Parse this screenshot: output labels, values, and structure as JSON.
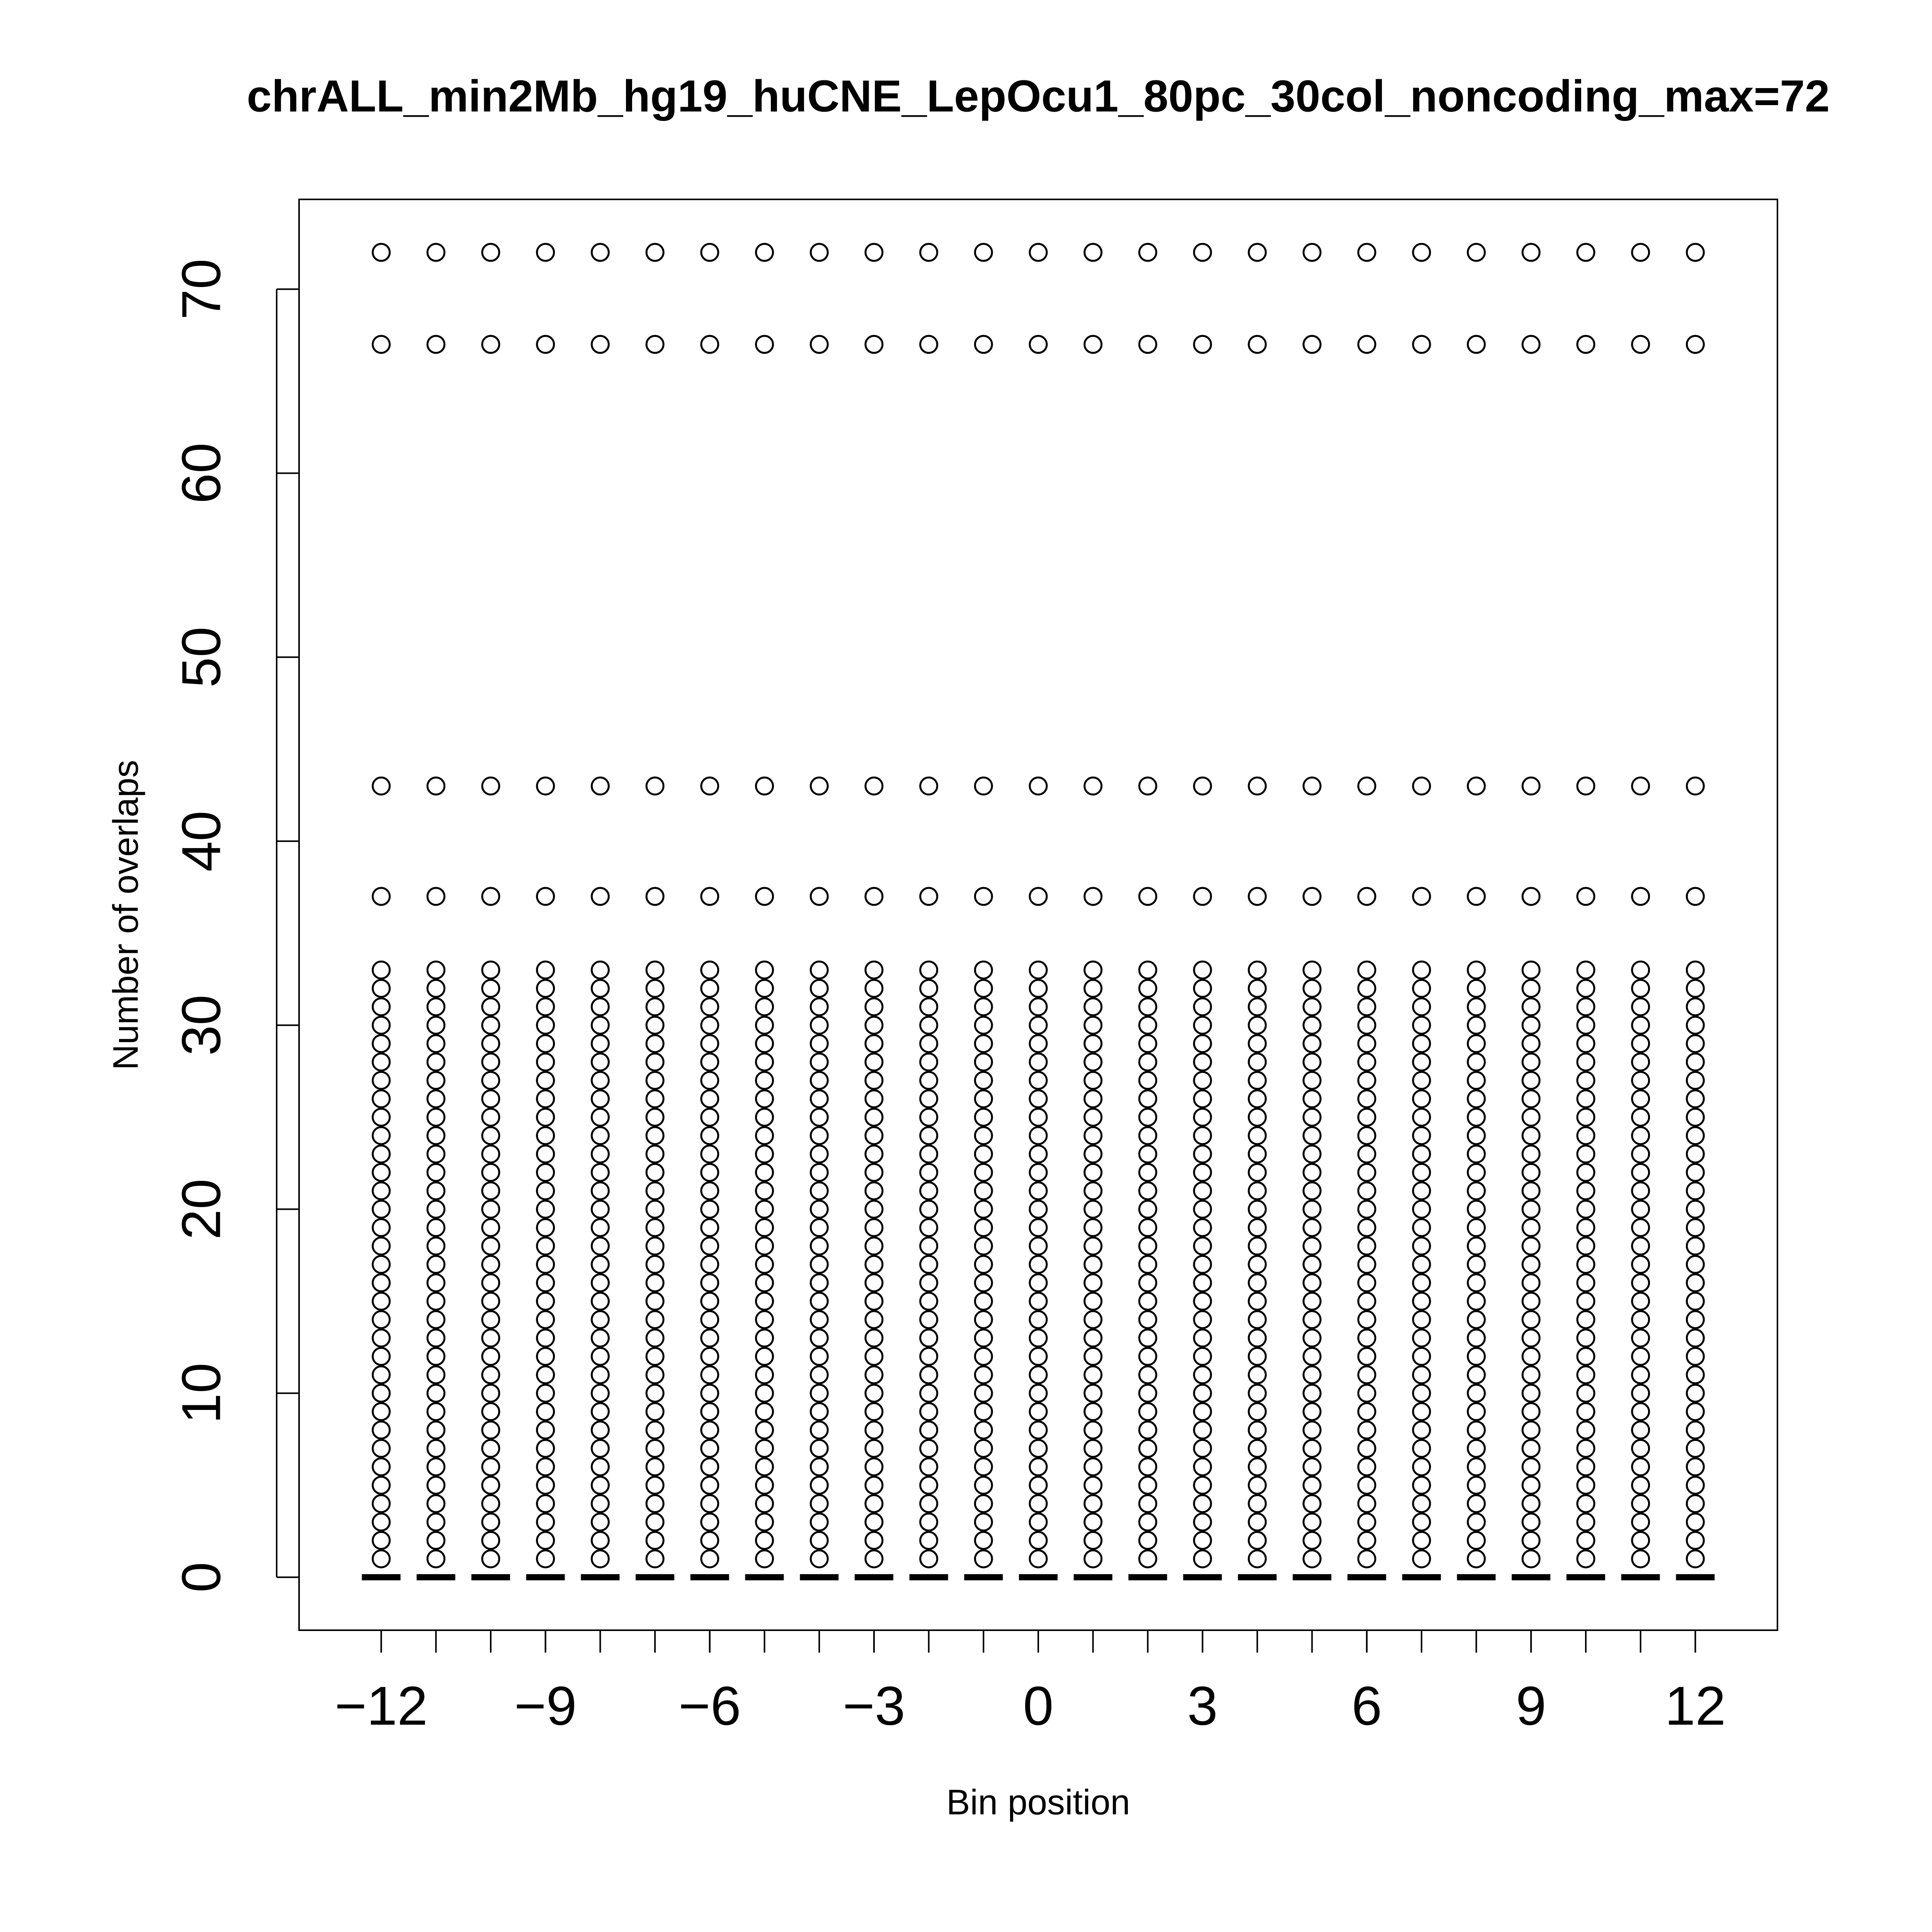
{
  "chart_data": {
    "type": "strip",
    "title": "chrALL_min2Mb_hg19_huCNE_LepOcu1_80pc_30col_noncoding_max=72",
    "x_label": "Bin position",
    "y_label": "Number of overlaps",
    "xlim": [
      -13.5,
      13.5
    ],
    "ylim": [
      -2.88,
      74.88
    ],
    "xticks": [
      {
        "value": -12,
        "label": "−12"
      },
      {
        "value": -9,
        "label": "−9"
      },
      {
        "value": -6,
        "label": "−6"
      },
      {
        "value": -3,
        "label": "−3"
      },
      0,
      3,
      6,
      9,
      12
    ],
    "yticks": [
      0,
      10,
      20,
      30,
      40,
      50,
      60,
      70
    ],
    "color": "#000000",
    "series": [
      {
        "x": -12,
        "values": [
          0,
          1,
          2,
          3,
          4,
          5,
          6,
          7,
          8,
          9,
          10,
          11,
          12,
          13,
          14,
          15,
          16,
          17,
          18,
          19,
          20,
          21,
          22,
          23,
          24,
          25,
          26,
          27,
          28,
          29,
          30,
          31,
          32,
          33,
          37,
          43,
          67,
          72
        ]
      },
      {
        "x": -11,
        "values": [
          0,
          1,
          2,
          3,
          4,
          5,
          6,
          7,
          8,
          9,
          10,
          11,
          12,
          13,
          14,
          15,
          16,
          17,
          18,
          19,
          20,
          21,
          22,
          23,
          24,
          25,
          26,
          27,
          28,
          29,
          30,
          31,
          32,
          33,
          37,
          43,
          67,
          72
        ]
      },
      {
        "x": -10,
        "values": [
          0,
          1,
          2,
          3,
          4,
          5,
          6,
          7,
          8,
          9,
          10,
          11,
          12,
          13,
          14,
          15,
          16,
          17,
          18,
          19,
          20,
          21,
          22,
          23,
          24,
          25,
          26,
          27,
          28,
          29,
          30,
          31,
          32,
          33,
          37,
          43,
          67,
          72
        ]
      },
      {
        "x": -9,
        "values": [
          0,
          1,
          2,
          3,
          4,
          5,
          6,
          7,
          8,
          9,
          10,
          11,
          12,
          13,
          14,
          15,
          16,
          17,
          18,
          19,
          20,
          21,
          22,
          23,
          24,
          25,
          26,
          27,
          28,
          29,
          30,
          31,
          32,
          33,
          37,
          43,
          67,
          72
        ]
      },
      {
        "x": -8,
        "values": [
          0,
          1,
          2,
          3,
          4,
          5,
          6,
          7,
          8,
          9,
          10,
          11,
          12,
          13,
          14,
          15,
          16,
          17,
          18,
          19,
          20,
          21,
          22,
          23,
          24,
          25,
          26,
          27,
          28,
          29,
          30,
          31,
          32,
          33,
          37,
          43,
          67,
          72
        ]
      },
      {
        "x": -7,
        "values": [
          0,
          1,
          2,
          3,
          4,
          5,
          6,
          7,
          8,
          9,
          10,
          11,
          12,
          13,
          14,
          15,
          16,
          17,
          18,
          19,
          20,
          21,
          22,
          23,
          24,
          25,
          26,
          27,
          28,
          29,
          30,
          31,
          32,
          33,
          37,
          43,
          67,
          72
        ]
      },
      {
        "x": -6,
        "values": [
          0,
          1,
          2,
          3,
          4,
          5,
          6,
          7,
          8,
          9,
          10,
          11,
          12,
          13,
          14,
          15,
          16,
          17,
          18,
          19,
          20,
          21,
          22,
          23,
          24,
          25,
          26,
          27,
          28,
          29,
          30,
          31,
          32,
          33,
          37,
          43,
          67,
          72
        ]
      },
      {
        "x": -5,
        "values": [
          0,
          1,
          2,
          3,
          4,
          5,
          6,
          7,
          8,
          9,
          10,
          11,
          12,
          13,
          14,
          15,
          16,
          17,
          18,
          19,
          20,
          21,
          22,
          23,
          24,
          25,
          26,
          27,
          28,
          29,
          30,
          31,
          32,
          33,
          37,
          43,
          67,
          72
        ]
      },
      {
        "x": -4,
        "values": [
          0,
          1,
          2,
          3,
          4,
          5,
          6,
          7,
          8,
          9,
          10,
          11,
          12,
          13,
          14,
          15,
          16,
          17,
          18,
          19,
          20,
          21,
          22,
          23,
          24,
          25,
          26,
          27,
          28,
          29,
          30,
          31,
          32,
          33,
          37,
          43,
          67,
          72
        ]
      },
      {
        "x": -3,
        "values": [
          0,
          1,
          2,
          3,
          4,
          5,
          6,
          7,
          8,
          9,
          10,
          11,
          12,
          13,
          14,
          15,
          16,
          17,
          18,
          19,
          20,
          21,
          22,
          23,
          24,
          25,
          26,
          27,
          28,
          29,
          30,
          31,
          32,
          33,
          37,
          43,
          67,
          72
        ]
      },
      {
        "x": -2,
        "values": [
          0,
          1,
          2,
          3,
          4,
          5,
          6,
          7,
          8,
          9,
          10,
          11,
          12,
          13,
          14,
          15,
          16,
          17,
          18,
          19,
          20,
          21,
          22,
          23,
          24,
          25,
          26,
          27,
          28,
          29,
          30,
          31,
          32,
          33,
          37,
          43,
          67,
          72
        ]
      },
      {
        "x": -1,
        "values": [
          0,
          1,
          2,
          3,
          4,
          5,
          6,
          7,
          8,
          9,
          10,
          11,
          12,
          13,
          14,
          15,
          16,
          17,
          18,
          19,
          20,
          21,
          22,
          23,
          24,
          25,
          26,
          27,
          28,
          29,
          30,
          31,
          32,
          33,
          37,
          43,
          67,
          72
        ]
      },
      {
        "x": 0,
        "values": [
          0,
          1,
          2,
          3,
          4,
          5,
          6,
          7,
          8,
          9,
          10,
          11,
          12,
          13,
          14,
          15,
          16,
          17,
          18,
          19,
          20,
          21,
          22,
          23,
          24,
          25,
          26,
          27,
          28,
          29,
          30,
          31,
          32,
          33,
          37,
          43,
          67,
          72
        ]
      },
      {
        "x": 1,
        "values": [
          0,
          1,
          2,
          3,
          4,
          5,
          6,
          7,
          8,
          9,
          10,
          11,
          12,
          13,
          14,
          15,
          16,
          17,
          18,
          19,
          20,
          21,
          22,
          23,
          24,
          25,
          26,
          27,
          28,
          29,
          30,
          31,
          32,
          33,
          37,
          43,
          67,
          72
        ]
      },
      {
        "x": 2,
        "values": [
          0,
          1,
          2,
          3,
          4,
          5,
          6,
          7,
          8,
          9,
          10,
          11,
          12,
          13,
          14,
          15,
          16,
          17,
          18,
          19,
          20,
          21,
          22,
          23,
          24,
          25,
          26,
          27,
          28,
          29,
          30,
          31,
          32,
          33,
          37,
          43,
          67,
          72
        ]
      },
      {
        "x": 3,
        "values": [
          0,
          1,
          2,
          3,
          4,
          5,
          6,
          7,
          8,
          9,
          10,
          11,
          12,
          13,
          14,
          15,
          16,
          17,
          18,
          19,
          20,
          21,
          22,
          23,
          24,
          25,
          26,
          27,
          28,
          29,
          30,
          31,
          32,
          33,
          37,
          43,
          67,
          72
        ]
      },
      {
        "x": 4,
        "values": [
          0,
          1,
          2,
          3,
          4,
          5,
          6,
          7,
          8,
          9,
          10,
          11,
          12,
          13,
          14,
          15,
          16,
          17,
          18,
          19,
          20,
          21,
          22,
          23,
          24,
          25,
          26,
          27,
          28,
          29,
          30,
          31,
          32,
          33,
          37,
          43,
          67,
          72
        ]
      },
      {
        "x": 5,
        "values": [
          0,
          1,
          2,
          3,
          4,
          5,
          6,
          7,
          8,
          9,
          10,
          11,
          12,
          13,
          14,
          15,
          16,
          17,
          18,
          19,
          20,
          21,
          22,
          23,
          24,
          25,
          26,
          27,
          28,
          29,
          30,
          31,
          32,
          33,
          37,
          43,
          67,
          72
        ]
      },
      {
        "x": 6,
        "values": [
          0,
          1,
          2,
          3,
          4,
          5,
          6,
          7,
          8,
          9,
          10,
          11,
          12,
          13,
          14,
          15,
          16,
          17,
          18,
          19,
          20,
          21,
          22,
          23,
          24,
          25,
          26,
          27,
          28,
          29,
          30,
          31,
          32,
          33,
          37,
          43,
          67,
          72
        ]
      },
      {
        "x": 7,
        "values": [
          0,
          1,
          2,
          3,
          4,
          5,
          6,
          7,
          8,
          9,
          10,
          11,
          12,
          13,
          14,
          15,
          16,
          17,
          18,
          19,
          20,
          21,
          22,
          23,
          24,
          25,
          26,
          27,
          28,
          29,
          30,
          31,
          32,
          33,
          37,
          43,
          67,
          72
        ]
      },
      {
        "x": 8,
        "values": [
          0,
          1,
          2,
          3,
          4,
          5,
          6,
          7,
          8,
          9,
          10,
          11,
          12,
          13,
          14,
          15,
          16,
          17,
          18,
          19,
          20,
          21,
          22,
          23,
          24,
          25,
          26,
          27,
          28,
          29,
          30,
          31,
          32,
          33,
          37,
          43,
          67,
          72
        ]
      },
      {
        "x": 9,
        "values": [
          0,
          1,
          2,
          3,
          4,
          5,
          6,
          7,
          8,
          9,
          10,
          11,
          12,
          13,
          14,
          15,
          16,
          17,
          18,
          19,
          20,
          21,
          22,
          23,
          24,
          25,
          26,
          27,
          28,
          29,
          30,
          31,
          32,
          33,
          37,
          43,
          67,
          72
        ]
      },
      {
        "x": 10,
        "values": [
          0,
          1,
          2,
          3,
          4,
          5,
          6,
          7,
          8,
          9,
          10,
          11,
          12,
          13,
          14,
          15,
          16,
          17,
          18,
          19,
          20,
          21,
          22,
          23,
          24,
          25,
          26,
          27,
          28,
          29,
          30,
          31,
          32,
          33,
          37,
          43,
          67,
          72
        ]
      },
      {
        "x": 11,
        "values": [
          0,
          1,
          2,
          3,
          4,
          5,
          6,
          7,
          8,
          9,
          10,
          11,
          12,
          13,
          14,
          15,
          16,
          17,
          18,
          19,
          20,
          21,
          22,
          23,
          24,
          25,
          26,
          27,
          28,
          29,
          30,
          31,
          32,
          33,
          37,
          43,
          67,
          72
        ]
      },
      {
        "x": 12,
        "values": [
          0,
          1,
          2,
          3,
          4,
          5,
          6,
          7,
          8,
          9,
          10,
          11,
          12,
          13,
          14,
          15,
          16,
          17,
          18,
          19,
          20,
          21,
          22,
          23,
          24,
          25,
          26,
          27,
          28,
          29,
          30,
          31,
          32,
          33,
          37,
          43,
          67,
          72
        ]
      }
    ]
  }
}
